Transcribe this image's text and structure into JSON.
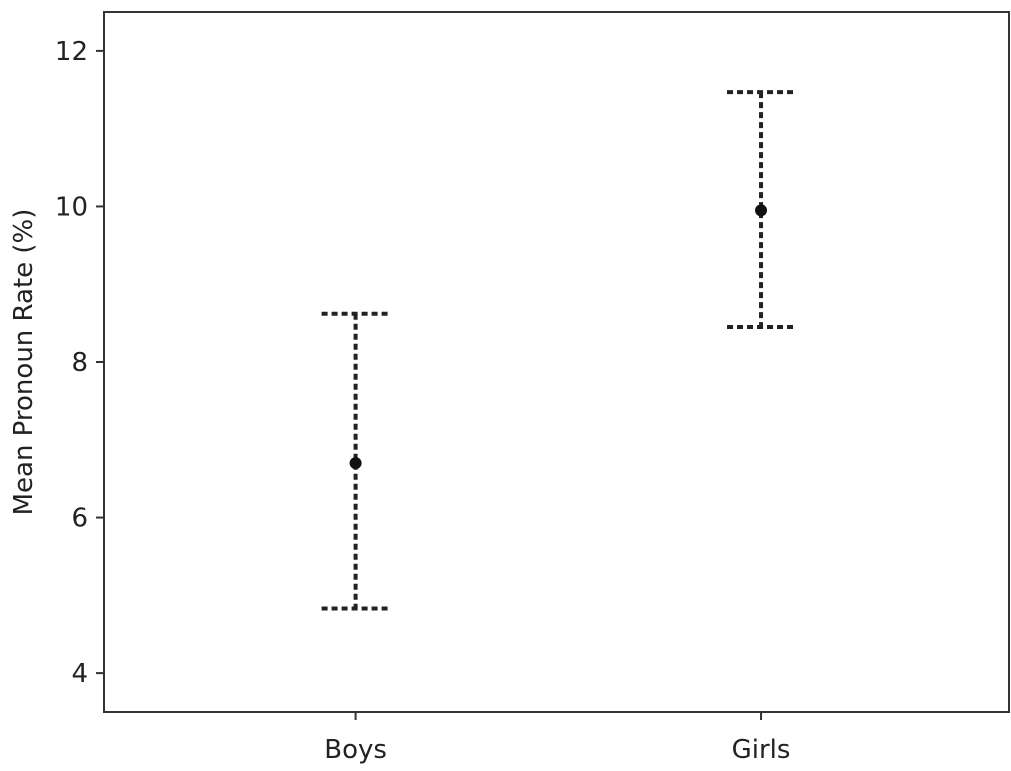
{
  "chart_data": {
    "type": "errorbar",
    "categories": [
      "Boys",
      "Girls"
    ],
    "series": [
      {
        "means": [
          6.7,
          9.95
        ],
        "lower": [
          4.83,
          8.45
        ],
        "upper": [
          8.62,
          11.47
        ]
      }
    ],
    "xlabel": "",
    "ylabel": "Mean Pronoun Rate (%)",
    "ylim": [
      3.5,
      12.5
    ],
    "yticks": [
      4,
      6,
      8,
      10,
      12
    ],
    "grid": false,
    "legend": "none",
    "colors": {
      "marker": "#111111",
      "errorbar": "#222222",
      "axis": "#333333"
    }
  }
}
